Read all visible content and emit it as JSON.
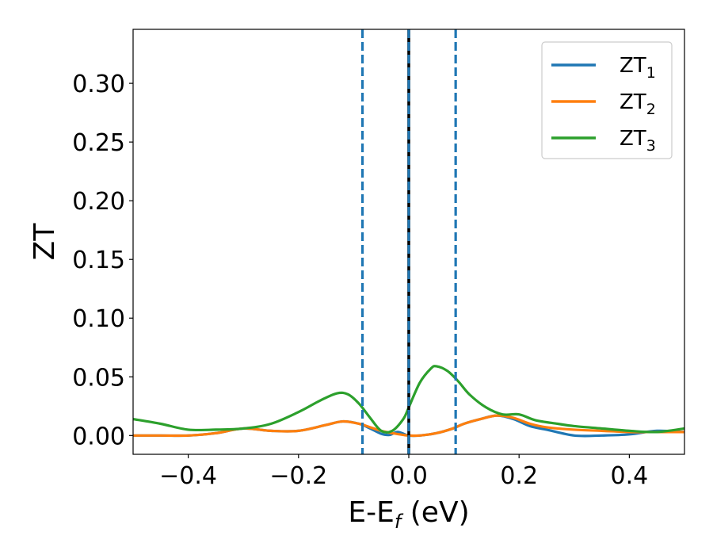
{
  "chart_data": {
    "type": "line",
    "title": "",
    "xlabel": "E-E",
    "xlabel_sub": "f",
    "xlabel_unit": " (eV)",
    "ylabel": "ZT",
    "xlim": [
      -0.5,
      0.5
    ],
    "ylim": [
      -0.016,
      0.346
    ],
    "x_ticks": [
      -0.4,
      -0.2,
      0.0,
      0.2,
      0.4
    ],
    "x_tick_labels": [
      "−0.4",
      "−0.2",
      "0.0",
      "0.2",
      "0.4"
    ],
    "y_ticks": [
      0.0,
      0.05,
      0.1,
      0.15,
      0.2,
      0.25,
      0.3
    ],
    "y_tick_labels": [
      "0.00",
      "0.05",
      "0.10",
      "0.15",
      "0.20",
      "0.25",
      "0.30"
    ],
    "grid": false,
    "legend_position": "top-right",
    "vertical_lines": [
      {
        "x": -0.084,
        "color": "#1f77b4",
        "style": "dashed"
      },
      {
        "x": 0.0,
        "color": "#000000",
        "style": "solid"
      },
      {
        "x": 0.0,
        "color": "#1f77b4",
        "style": "dashed"
      },
      {
        "x": 0.085,
        "color": "#1f77b4",
        "style": "dashed"
      }
    ],
    "series": [
      {
        "name": "ZT",
        "sub": "1",
        "color": "#1f77b4",
        "x": [
          -0.5,
          -0.45,
          -0.4,
          -0.35,
          -0.3,
          -0.25,
          -0.2,
          -0.15,
          -0.12,
          -0.09,
          -0.07,
          -0.05,
          -0.035,
          -0.02,
          0.0,
          0.02,
          0.05,
          0.08,
          0.1,
          0.13,
          0.16,
          0.19,
          0.22,
          0.25,
          0.3,
          0.35,
          0.4,
          0.45,
          0.5
        ],
        "y": [
          0.0,
          0.0,
          0.0,
          0.002,
          0.006,
          0.004,
          0.004,
          0.009,
          0.012,
          0.01,
          0.006,
          0.0015,
          0.0005,
          0.003,
          0.0,
          0.0,
          0.002,
          0.006,
          0.01,
          0.014,
          0.017,
          0.014,
          0.008,
          0.005,
          0.0,
          0.0,
          0.001,
          0.004,
          0.003
        ]
      },
      {
        "name": "ZT",
        "sub": "2",
        "color": "#ff7f0e",
        "x": [
          -0.5,
          -0.45,
          -0.4,
          -0.35,
          -0.3,
          -0.25,
          -0.2,
          -0.15,
          -0.12,
          -0.09,
          -0.07,
          -0.05,
          -0.03,
          -0.01,
          0.0,
          0.02,
          0.05,
          0.08,
          0.1,
          0.13,
          0.16,
          0.19,
          0.22,
          0.25,
          0.3,
          0.35,
          0.4,
          0.45,
          0.5
        ],
        "y": [
          0.0,
          0.0,
          0.0,
          0.002,
          0.006,
          0.004,
          0.004,
          0.009,
          0.012,
          0.01,
          0.007,
          0.004,
          0.002,
          0.0005,
          0.0,
          0.0,
          0.002,
          0.006,
          0.01,
          0.014,
          0.017,
          0.015,
          0.01,
          0.007,
          0.005,
          0.004,
          0.003,
          0.003,
          0.003
        ]
      },
      {
        "name": "ZT",
        "sub": "3",
        "color": "#2ca02c",
        "x": [
          -0.5,
          -0.45,
          -0.4,
          -0.35,
          -0.3,
          -0.25,
          -0.2,
          -0.16,
          -0.13,
          -0.11,
          -0.09,
          -0.07,
          -0.05,
          -0.03,
          -0.01,
          0.0,
          0.02,
          0.04,
          0.05,
          0.07,
          0.09,
          0.11,
          0.14,
          0.17,
          0.2,
          0.23,
          0.27,
          0.3,
          0.35,
          0.4,
          0.45,
          0.5
        ],
        "y": [
          0.014,
          0.01,
          0.005,
          0.005,
          0.006,
          0.01,
          0.02,
          0.03,
          0.036,
          0.035,
          0.027,
          0.015,
          0.004,
          0.004,
          0.014,
          0.024,
          0.045,
          0.057,
          0.059,
          0.055,
          0.046,
          0.035,
          0.024,
          0.018,
          0.018,
          0.013,
          0.01,
          0.008,
          0.006,
          0.004,
          0.003,
          0.006
        ]
      }
    ]
  }
}
